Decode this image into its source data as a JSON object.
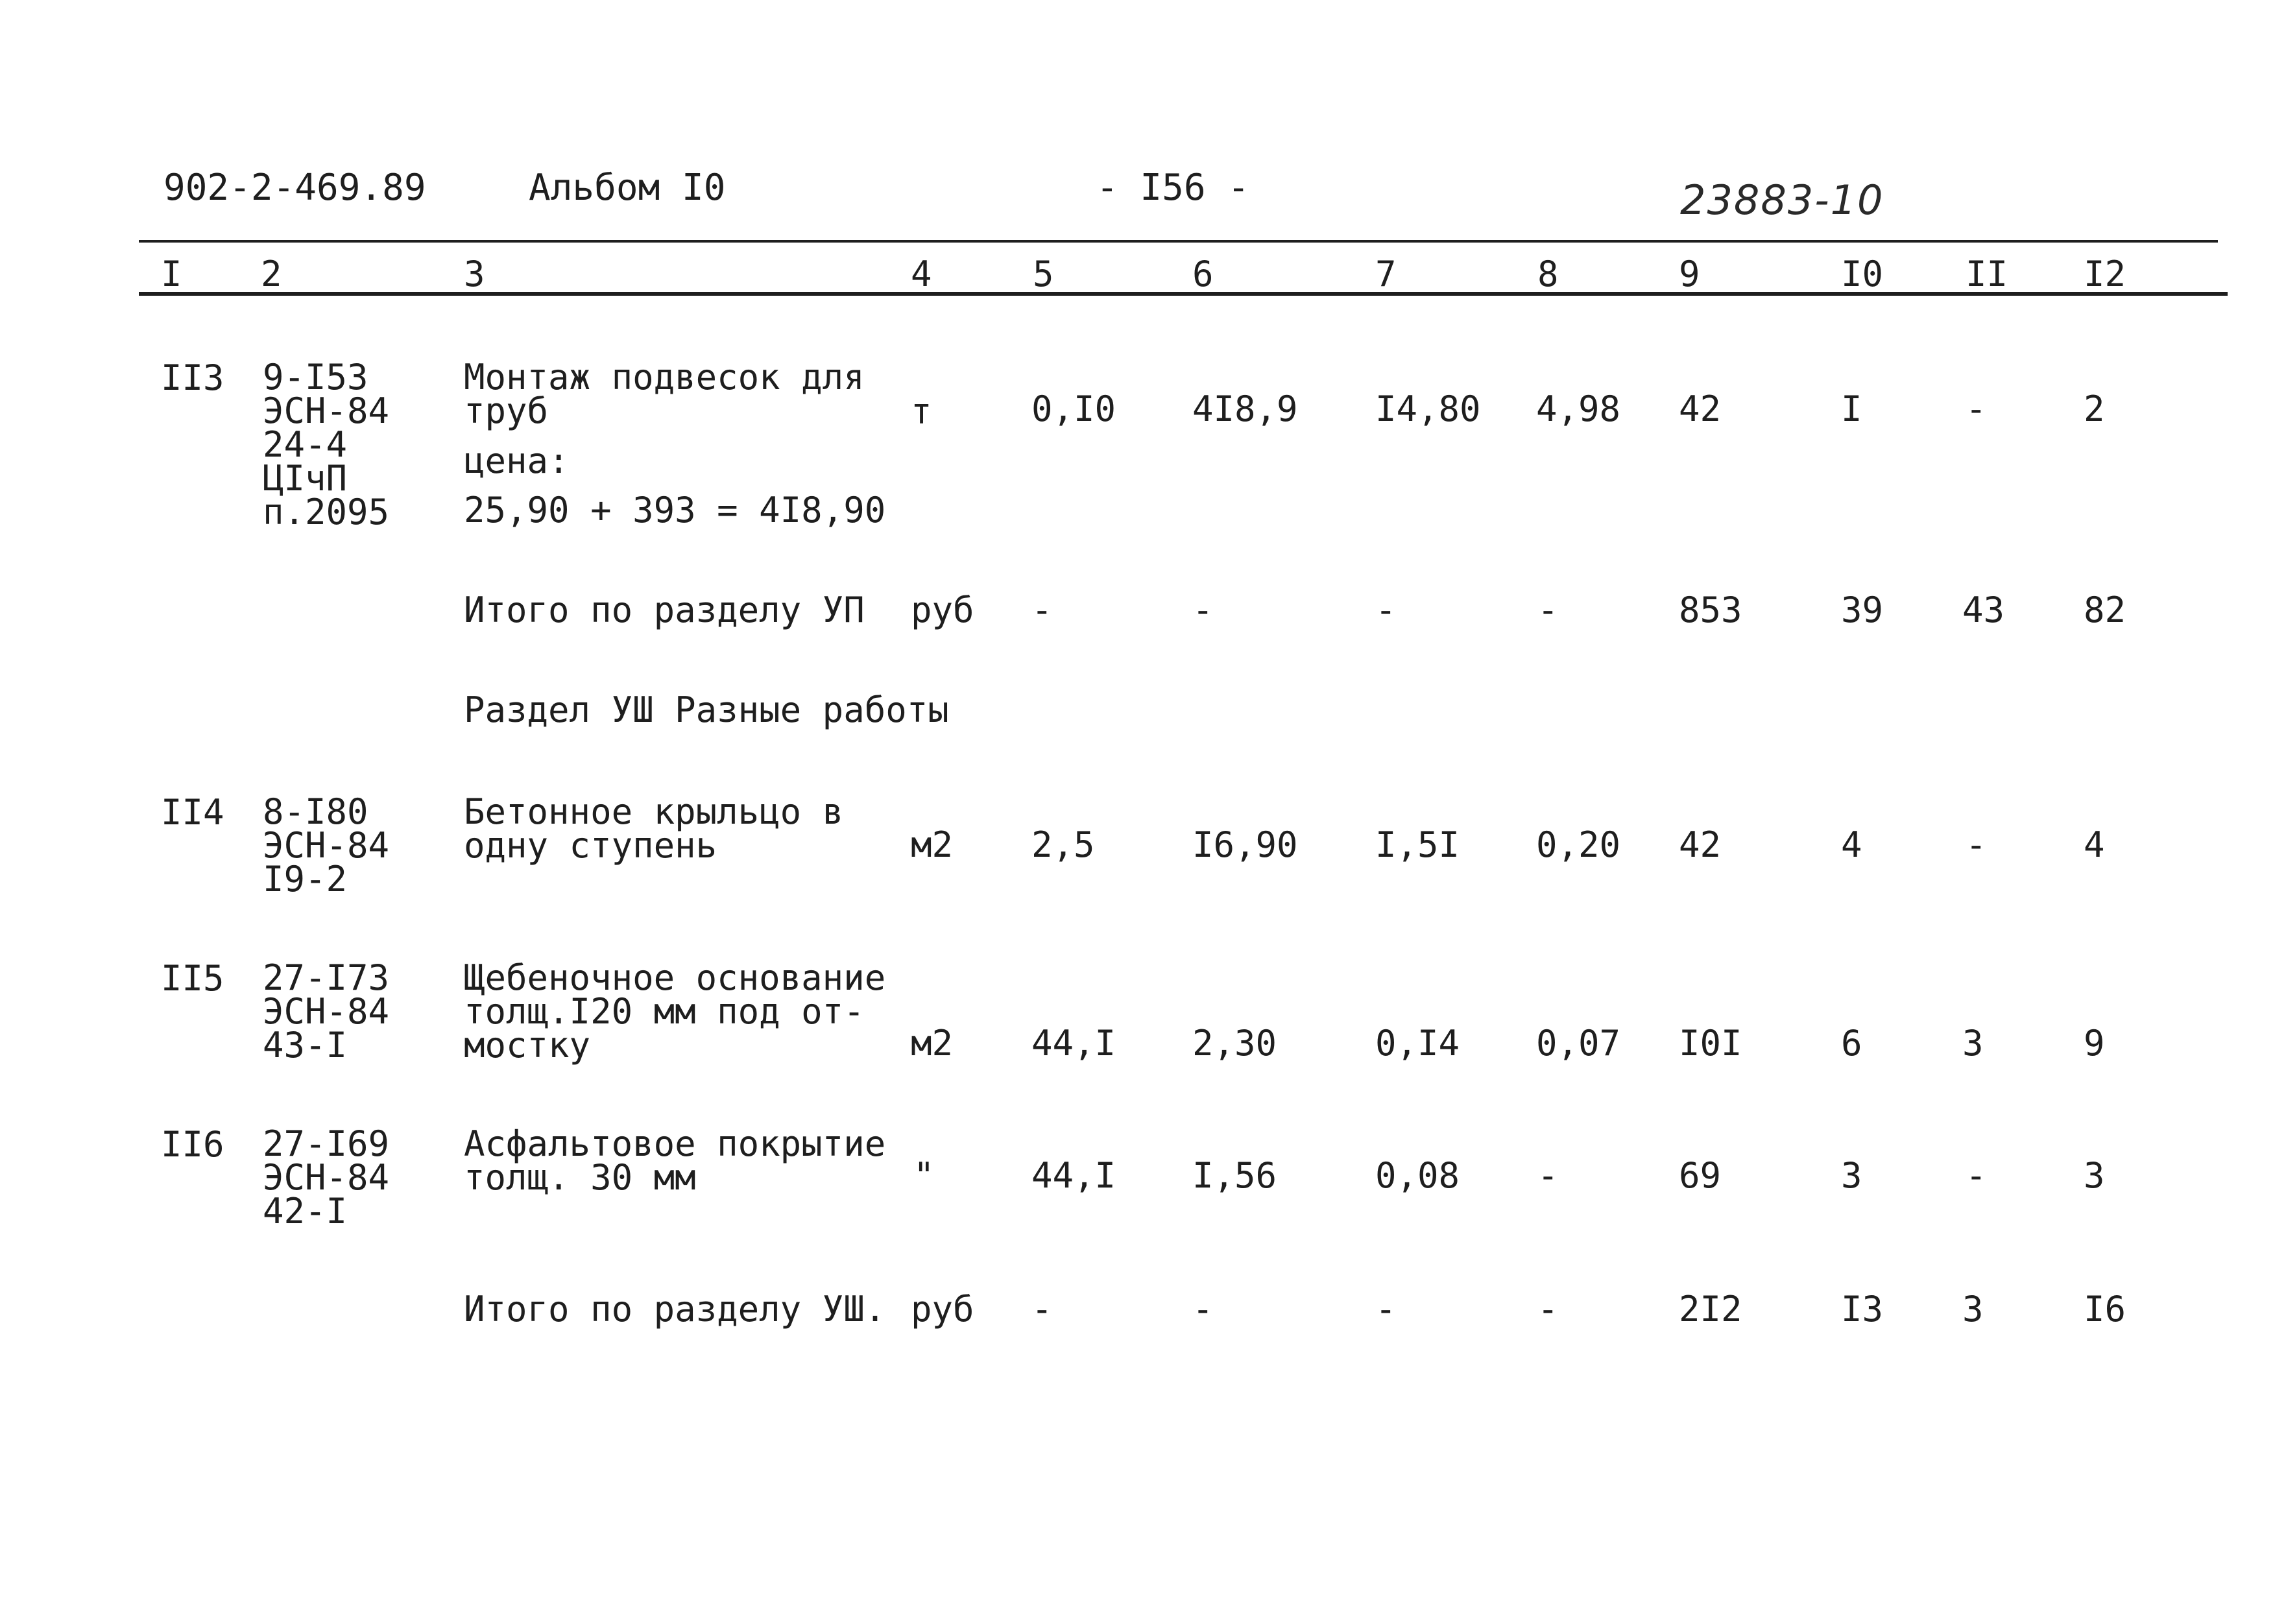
{
  "header": {
    "doc_code": "902-2-469.89",
    "album": "Альбом I0",
    "page": "- I56 -",
    "handwritten_number": "23883-10"
  },
  "columns": [
    "I",
    "2",
    "3",
    "4",
    "5",
    "6",
    "7",
    "8",
    "9",
    "I0",
    "II",
    "I2"
  ],
  "rows": {
    "r113": {
      "num": "II3",
      "code": [
        "9-I53",
        "ЭСН-84",
        "24-4",
        "ЦIчП",
        "п.2095"
      ],
      "desc": [
        "Монтаж подвесок для",
        "труб"
      ],
      "note": [
        "цена:",
        "25,90 + 393 = 4I8,90"
      ],
      "unit": "т",
      "c5": "0,I0",
      "c6": "4I8,9",
      "c7": "I4,80",
      "c8": "4,98",
      "c9": "42",
      "c10": "I",
      "c11": "-",
      "c12": "2"
    },
    "total7": {
      "label": "Итого по разделу УП",
      "unit": "руб",
      "c5": "-",
      "c6": "-",
      "c7": "-",
      "c8": "-",
      "c9": "853",
      "c10": "39",
      "c11": "43",
      "c12": "82"
    },
    "section8": {
      "title": "Раздел УШ Разные работы"
    },
    "r114": {
      "num": "II4",
      "code": [
        "8-I80",
        "ЭСН-84",
        "I9-2"
      ],
      "desc": [
        "Бетонное крыльцо в",
        "одну ступень"
      ],
      "unit": "м2",
      "c5": "2,5",
      "c6": "I6,90",
      "c7": "I,5I",
      "c8": "0,20",
      "c9": "42",
      "c10": "4",
      "c11": "-",
      "c12": "4"
    },
    "r115": {
      "num": "II5",
      "code": [
        "27-I73",
        "ЭСН-84",
        "43-I"
      ],
      "desc": [
        "Щебеночное основание",
        "толщ.I20 мм под от-",
        "мостку"
      ],
      "unit": "м2",
      "c5": "44,I",
      "c6": "2,30",
      "c7": "0,I4",
      "c8": "0,07",
      "c9": "I0I",
      "c10": "6",
      "c11": "3",
      "c12": "9"
    },
    "r116": {
      "num": "II6",
      "code": [
        "27-I69",
        "ЭСН-84",
        "42-I"
      ],
      "desc": [
        "Асфальтовое покрытие",
        "толщ. 30 мм"
      ],
      "unit": "\"",
      "c5": "44,I",
      "c6": "I,56",
      "c7": "0,08",
      "c8": "-",
      "c9": "69",
      "c10": "3",
      "c11": "-",
      "c12": "3"
    },
    "total8": {
      "label": "Итого по разделу УШ.",
      "unit": "руб",
      "c5": "-",
      "c6": "-",
      "c7": "-",
      "c8": "-",
      "c9": "2I2",
      "c10": "I3",
      "c11": "3",
      "c12": "I6"
    }
  }
}
